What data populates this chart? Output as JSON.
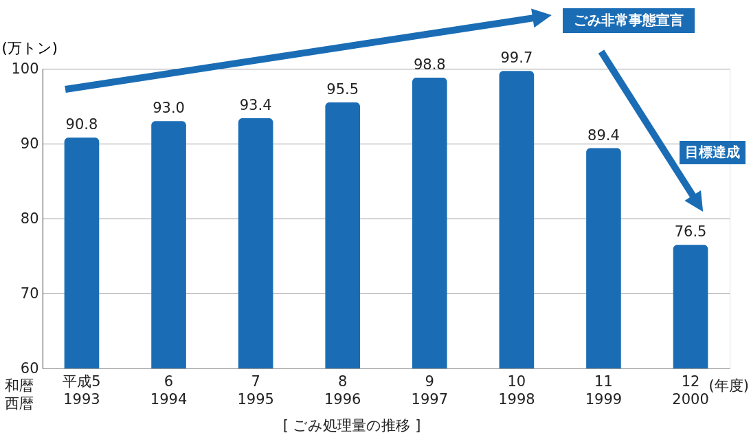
{
  "chart_data": {
    "type": "bar",
    "categories": [
      "平成5\n1993",
      "6\n1994",
      "7\n1995",
      "8\n1996",
      "9\n1997",
      "10\n1998",
      "11\n1999",
      "12\n2000"
    ],
    "values": [
      90.8,
      93.0,
      93.4,
      95.5,
      98.8,
      99.7,
      89.4,
      76.5
    ],
    "color": "#1a6db5",
    "ylabel": "(万トン)",
    "ylim": [
      60,
      100
    ],
    "yticks": [
      60,
      70,
      80,
      90,
      100
    ],
    "grid": "y",
    "legend": false,
    "value_labels": [
      "90.8",
      "93.0",
      "93.4",
      "95.5",
      "98.8",
      "99.7",
      "89.4",
      "76.5"
    ],
    "annotations": [
      "ごみ非常事態宣言",
      "目標達成",
      "和暦",
      "西暦",
      "(年度)",
      "[ ごみ処理量の推移 ]"
    ]
  }
}
